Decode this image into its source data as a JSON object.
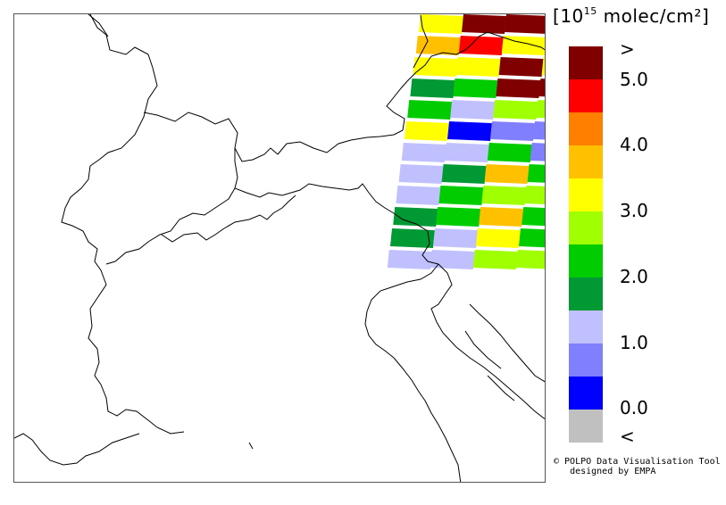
{
  "unit": {
    "base": "10",
    "exponent": "15",
    "text": "molec/cm²"
  },
  "legend": {
    "colors": [
      "#800000",
      "#ff0000",
      "#ff8000",
      "#ffc000",
      "#ffff00",
      "#a0ff00",
      "#00cc00",
      "#009933",
      "#c0c0ff",
      "#8080ff",
      "#0000ff",
      "#c0c0c0"
    ],
    "ticks": [
      ">",
      "5.0",
      "4.0",
      "3.0",
      "2.0",
      "1.0",
      "0.0",
      "<"
    ]
  },
  "credit": {
    "line1": "© POLPO Data Visualisation Tool",
    "line2": "designed by EMPA"
  }
}
